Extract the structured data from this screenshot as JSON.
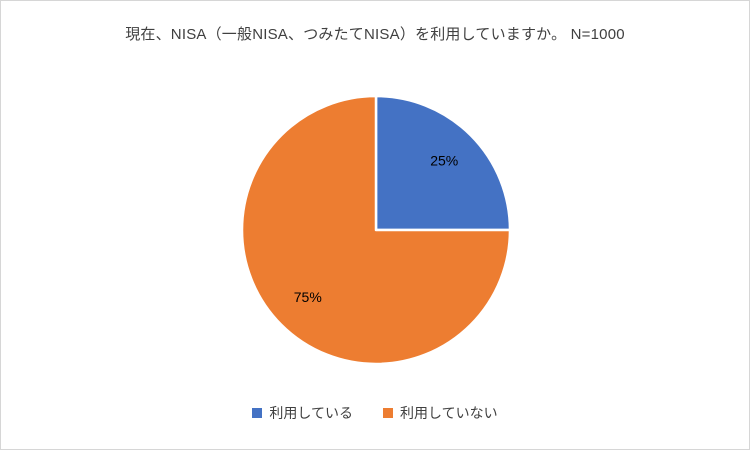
{
  "chart_data": {
    "type": "pie",
    "title": "現在、NISA（一般NISA、つみたてNISA）を利用していますか。 N=1000",
    "categories": [
      "利用している",
      "利用していない"
    ],
    "values": [
      25,
      75
    ],
    "data_labels": [
      "25%",
      "75%"
    ],
    "colors": [
      "#4472C4",
      "#ED7D31"
    ],
    "legend_position": "bottom",
    "start_angle_deg": 0,
    "direction": "clockwise"
  }
}
